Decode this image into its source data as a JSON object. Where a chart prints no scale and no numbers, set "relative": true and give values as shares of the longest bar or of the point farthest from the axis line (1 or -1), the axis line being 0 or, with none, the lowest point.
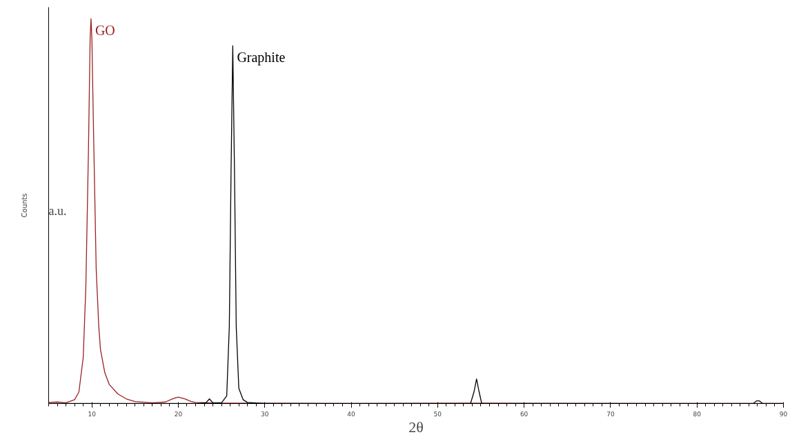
{
  "chart_data": {
    "type": "line",
    "xlabel": "2θ",
    "ylabel": "Counts",
    "annotations": [
      "a.u."
    ],
    "relative": true,
    "xlim": [
      5,
      90
    ],
    "xticks": [
      10,
      20,
      30,
      40,
      50,
      60,
      70,
      80,
      90
    ],
    "grid": false,
    "legend": false,
    "line_style": "solid",
    "series": [
      {
        "name": "GO",
        "color": "#9b1f23",
        "x": [
          5,
          6,
          7,
          8,
          8.5,
          9,
          9.3,
          9.6,
          9.8,
          9.9,
          10.0,
          10.2,
          10.5,
          10.8,
          11,
          11.5,
          12,
          13,
          14,
          15,
          17,
          18.5,
          19.3,
          20,
          20.8,
          21.5,
          22,
          25,
          28,
          40,
          54,
          90
        ],
        "values": [
          0.003,
          0.004,
          0.002,
          0.01,
          0.03,
          0.12,
          0.3,
          0.65,
          0.95,
          1.0,
          0.95,
          0.7,
          0.35,
          0.2,
          0.14,
          0.08,
          0.05,
          0.025,
          0.012,
          0.005,
          0.002,
          0.004,
          0.012,
          0.017,
          0.012,
          0.005,
          0.003,
          0.001,
          0.001,
          0.0,
          0.001,
          0.0
        ]
      },
      {
        "name": "Graphite",
        "color": "#000000",
        "x": [
          5,
          22,
          23.2,
          23.6,
          24,
          25,
          25.6,
          25.9,
          26.1,
          26.3,
          26.5,
          26.7,
          27,
          27.5,
          28,
          30,
          53.8,
          54.2,
          54.5,
          54.8,
          55.1,
          86.5,
          86.9,
          87.2,
          87.6,
          90
        ],
        "values": [
          0,
          0,
          0.002,
          0.012,
          0.002,
          0.002,
          0.02,
          0.2,
          0.6,
          0.93,
          0.6,
          0.2,
          0.04,
          0.01,
          0.003,
          0,
          0,
          0.03,
          0.064,
          0.03,
          0,
          0,
          0.007,
          0.007,
          0,
          0
        ]
      }
    ]
  }
}
